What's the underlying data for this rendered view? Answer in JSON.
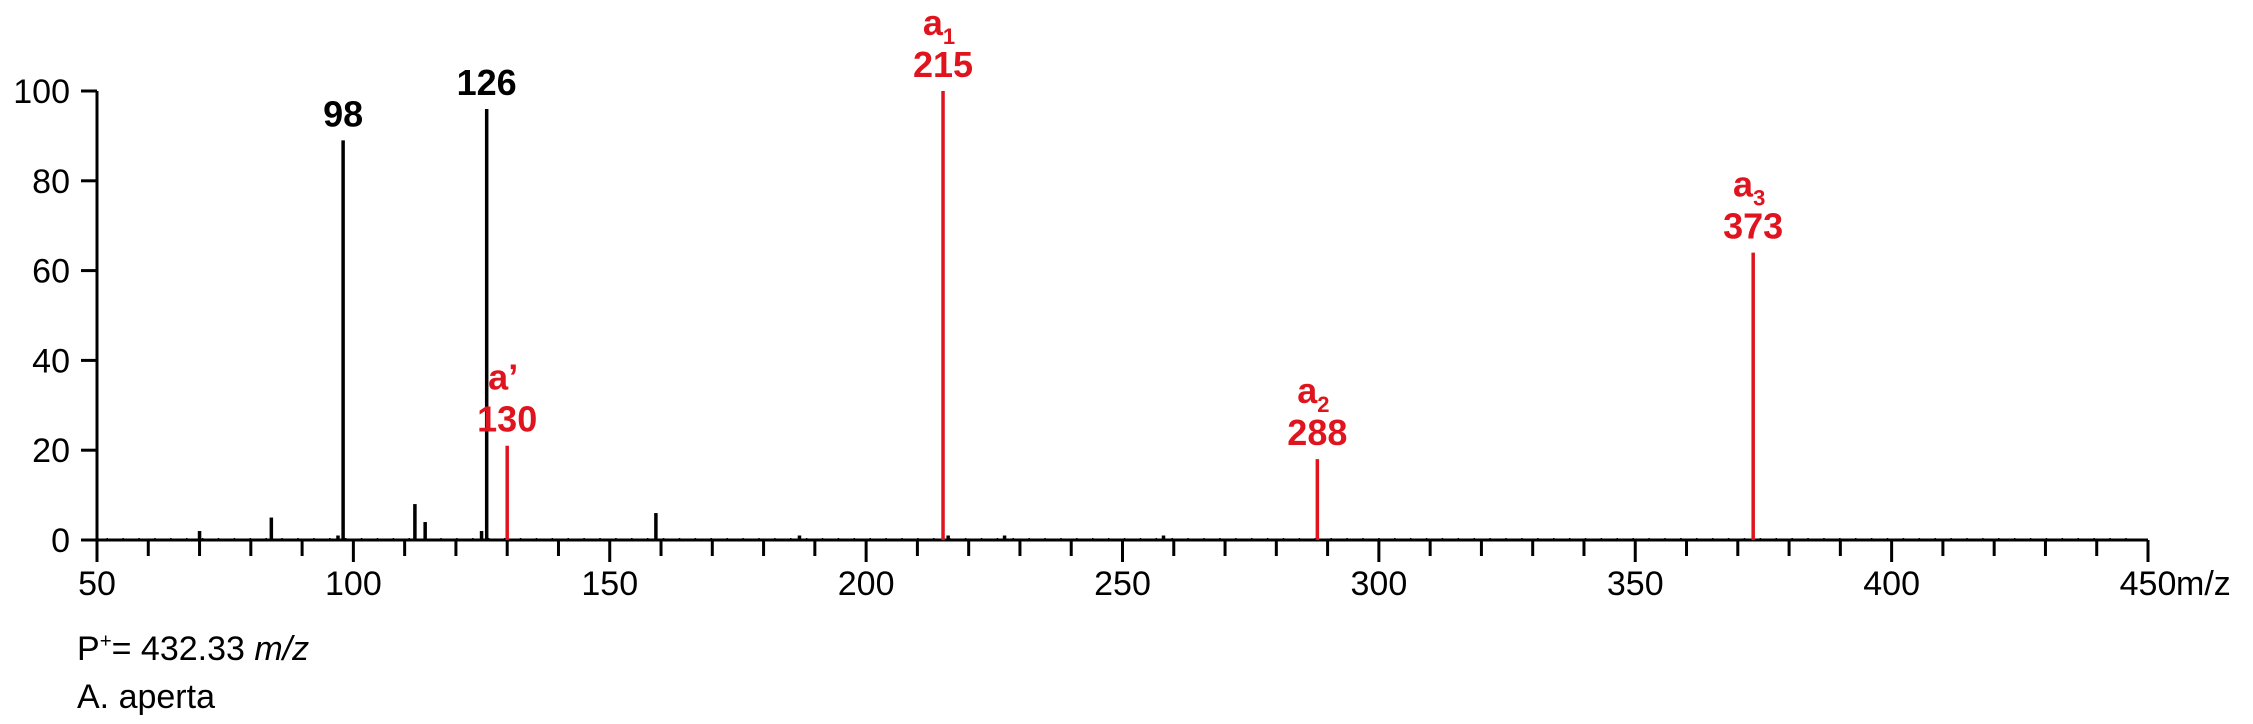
{
  "chart_data": {
    "type": "bar",
    "title": "",
    "xlabel": "m/z",
    "ylabel": "",
    "xlim": [
      50,
      450
    ],
    "ylim": [
      0,
      100
    ],
    "x_ticks": [
      50,
      100,
      150,
      200,
      250,
      300,
      350,
      400,
      450
    ],
    "y_ticks": [
      0,
      20,
      40,
      60,
      80,
      100
    ],
    "grid": false,
    "colors": {
      "default": "#000000",
      "highlight": "#e0141e"
    },
    "peaks": [
      {
        "x": 70,
        "y": 2,
        "color": "default"
      },
      {
        "x": 84,
        "y": 5,
        "color": "default"
      },
      {
        "x": 97,
        "y": 1,
        "color": "default"
      },
      {
        "x": 98,
        "y": 89,
        "color": "default",
        "label": "98"
      },
      {
        "x": 112,
        "y": 8,
        "color": "default"
      },
      {
        "x": 114,
        "y": 4,
        "color": "default"
      },
      {
        "x": 125,
        "y": 2,
        "color": "default"
      },
      {
        "x": 126,
        "y": 96,
        "color": "default",
        "label": "126"
      },
      {
        "x": 130,
        "y": 21,
        "color": "highlight",
        "label": "130",
        "ion": "a",
        "ion_sub": "’"
      },
      {
        "x": 159,
        "y": 6,
        "color": "default"
      },
      {
        "x": 187,
        "y": 1,
        "color": "default"
      },
      {
        "x": 215,
        "y": 100,
        "color": "highlight",
        "label": "215",
        "ion": "a",
        "ion_sub": "1"
      },
      {
        "x": 216,
        "y": 1,
        "color": "default"
      },
      {
        "x": 227,
        "y": 1,
        "color": "default"
      },
      {
        "x": 258,
        "y": 1,
        "color": "default"
      },
      {
        "x": 288,
        "y": 18,
        "color": "highlight",
        "label": "288",
        "ion": "a",
        "ion_sub": "2"
      },
      {
        "x": 373,
        "y": 64,
        "color": "highlight",
        "label": "373",
        "ion": "a",
        "ion_sub": "3"
      }
    ]
  },
  "footer": {
    "precursor_prefix": "P",
    "precursor_sup": "+",
    "precursor_value": "= 432.33 ",
    "precursor_unit": "m/z",
    "species": "A. aperta"
  }
}
